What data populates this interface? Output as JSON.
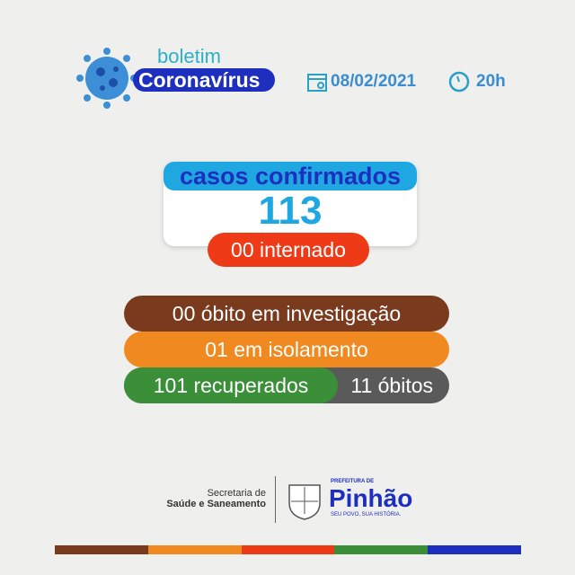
{
  "header": {
    "boletim": "boletim",
    "title": "Coronavírus",
    "date": "08/02/2021",
    "time": "20h",
    "icons": [
      "virus-icon",
      "calendar-icon",
      "clock-icon"
    ]
  },
  "confirmed": {
    "label": "casos confirmados",
    "value": "113",
    "hospitalized": "00 internado"
  },
  "stats": {
    "investigation": "00 óbito em investigação",
    "isolation": "01 em isolamento",
    "recovered": "101 recuperados",
    "deaths": "11 óbitos"
  },
  "footer": {
    "secretaria_line1": "Secretaria de",
    "secretaria_line2": "Saúde e Saneamento",
    "prefeitura": "PREFEITURA DE",
    "city": "Pinhão",
    "slogan": "SEU POVO, SUA HISTÓRIA.",
    "crest_text": "PINHÃO"
  },
  "colors": {
    "blue": "#1e2fbf",
    "lightblue": "#1ea7e1",
    "red": "#ee3a17",
    "brown": "#7a3a1e",
    "orange": "#f0891f",
    "green": "#3a8f38",
    "gray": "#5a5a5a"
  }
}
